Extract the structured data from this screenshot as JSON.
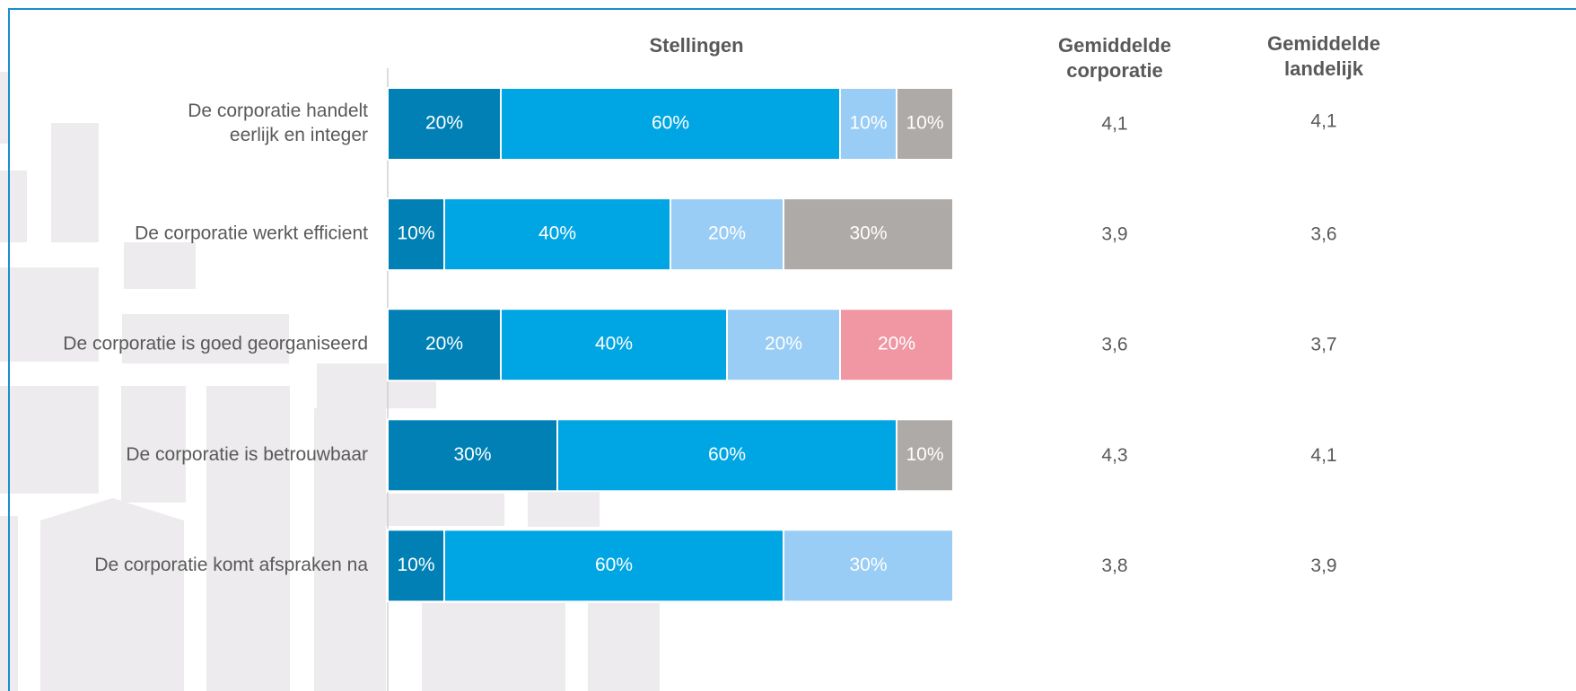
{
  "chart_data": {
    "type": "stacked-bar-horizontal",
    "title": "Stellingen",
    "categories": [
      [
        "De corporatie handelt",
        "eerlijk en integer"
      ],
      [
        "De corporatie werkt efficient"
      ],
      [
        "De corporatie is goed georganiseerd"
      ],
      [
        "De corporatie is betrouwbaar"
      ],
      [
        "De corporatie komt afspraken na"
      ]
    ],
    "xlim": [
      0,
      100
    ],
    "series": [
      {
        "color": "#0080b5",
        "values": [
          20,
          10,
          20,
          30,
          10
        ],
        "value_labels": [
          "20%",
          "10%",
          "20%",
          "30%",
          "10%"
        ]
      },
      {
        "color": "#00a6e3",
        "values": [
          60,
          40,
          40,
          60,
          60
        ],
        "value_labels": [
          "60%",
          "40%",
          "40%",
          "60%",
          "60%"
        ]
      },
      {
        "color": "#99cdf5",
        "values": [
          10,
          20,
          20,
          null,
          30
        ],
        "value_labels": [
          "10%",
          "20%",
          "20%",
          null,
          "30%"
        ]
      },
      {
        "color": "#f097a3",
        "values": [
          null,
          null,
          20,
          null,
          null
        ],
        "value_labels": [
          null,
          null,
          "20%",
          null,
          null
        ]
      },
      {
        "color": "#aeaaa8",
        "values": [
          10,
          30,
          null,
          10,
          null
        ],
        "value_labels": [
          "10%",
          "30%",
          null,
          "10%",
          null
        ]
      }
    ],
    "columns": [
      {
        "header": [
          "Gemiddelde",
          "corporatie"
        ],
        "values": [
          4.1,
          3.9,
          3.6,
          4.3,
          3.8
        ],
        "value_labels": [
          "4,1",
          "3,9",
          "3,6",
          "4,3",
          "3,8"
        ]
      },
      {
        "header": [
          "Gemiddelde",
          "landelijk"
        ],
        "values": [
          4.1,
          3.6,
          3.7,
          4.1,
          3.9
        ],
        "value_labels": [
          "4,1",
          "3,6",
          "3,7",
          "4,1",
          "3,9"
        ]
      }
    ]
  }
}
